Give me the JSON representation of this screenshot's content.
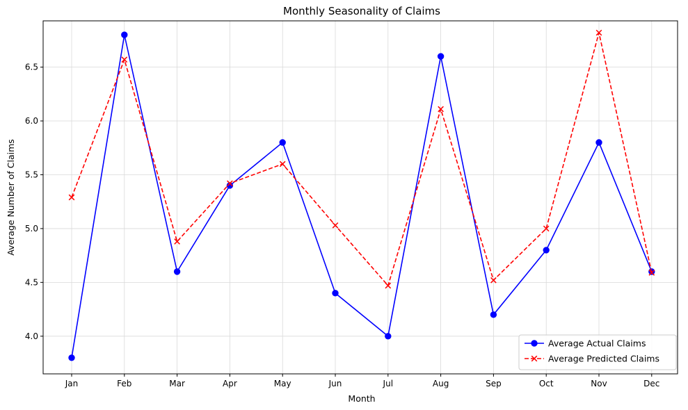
{
  "chart_data": {
    "type": "line",
    "title": "Monthly Seasonality of Claims",
    "xlabel": "Month",
    "ylabel": "Average Number of Claims",
    "categories": [
      "Jan",
      "Feb",
      "Mar",
      "Apr",
      "May",
      "Jun",
      "Jul",
      "Aug",
      "Sep",
      "Oct",
      "Nov",
      "Dec"
    ],
    "ylim": [
      3.65,
      6.93
    ],
    "yticks": [
      "4.0",
      "4.5",
      "5.0",
      "5.5",
      "6.0",
      "6.5"
    ],
    "ytick_values": [
      4.0,
      4.5,
      5.0,
      5.5,
      6.0,
      6.5
    ],
    "grid": true,
    "legend_position": "bottom-right",
    "series": [
      {
        "name": "Average Actual Claims",
        "color": "#0000ff",
        "linestyle": "solid",
        "marker": "circle",
        "values": [
          3.8,
          6.8,
          4.6,
          5.4,
          5.8,
          4.4,
          4.0,
          6.6,
          4.2,
          4.8,
          5.8,
          4.6
        ]
      },
      {
        "name": "Average Predicted Claims",
        "color": "#ff0000",
        "linestyle": "dashed",
        "marker": "x",
        "values": [
          5.29,
          6.57,
          4.88,
          5.42,
          5.6,
          5.03,
          4.47,
          6.11,
          4.52,
          5.0,
          6.82,
          4.59
        ]
      }
    ]
  }
}
